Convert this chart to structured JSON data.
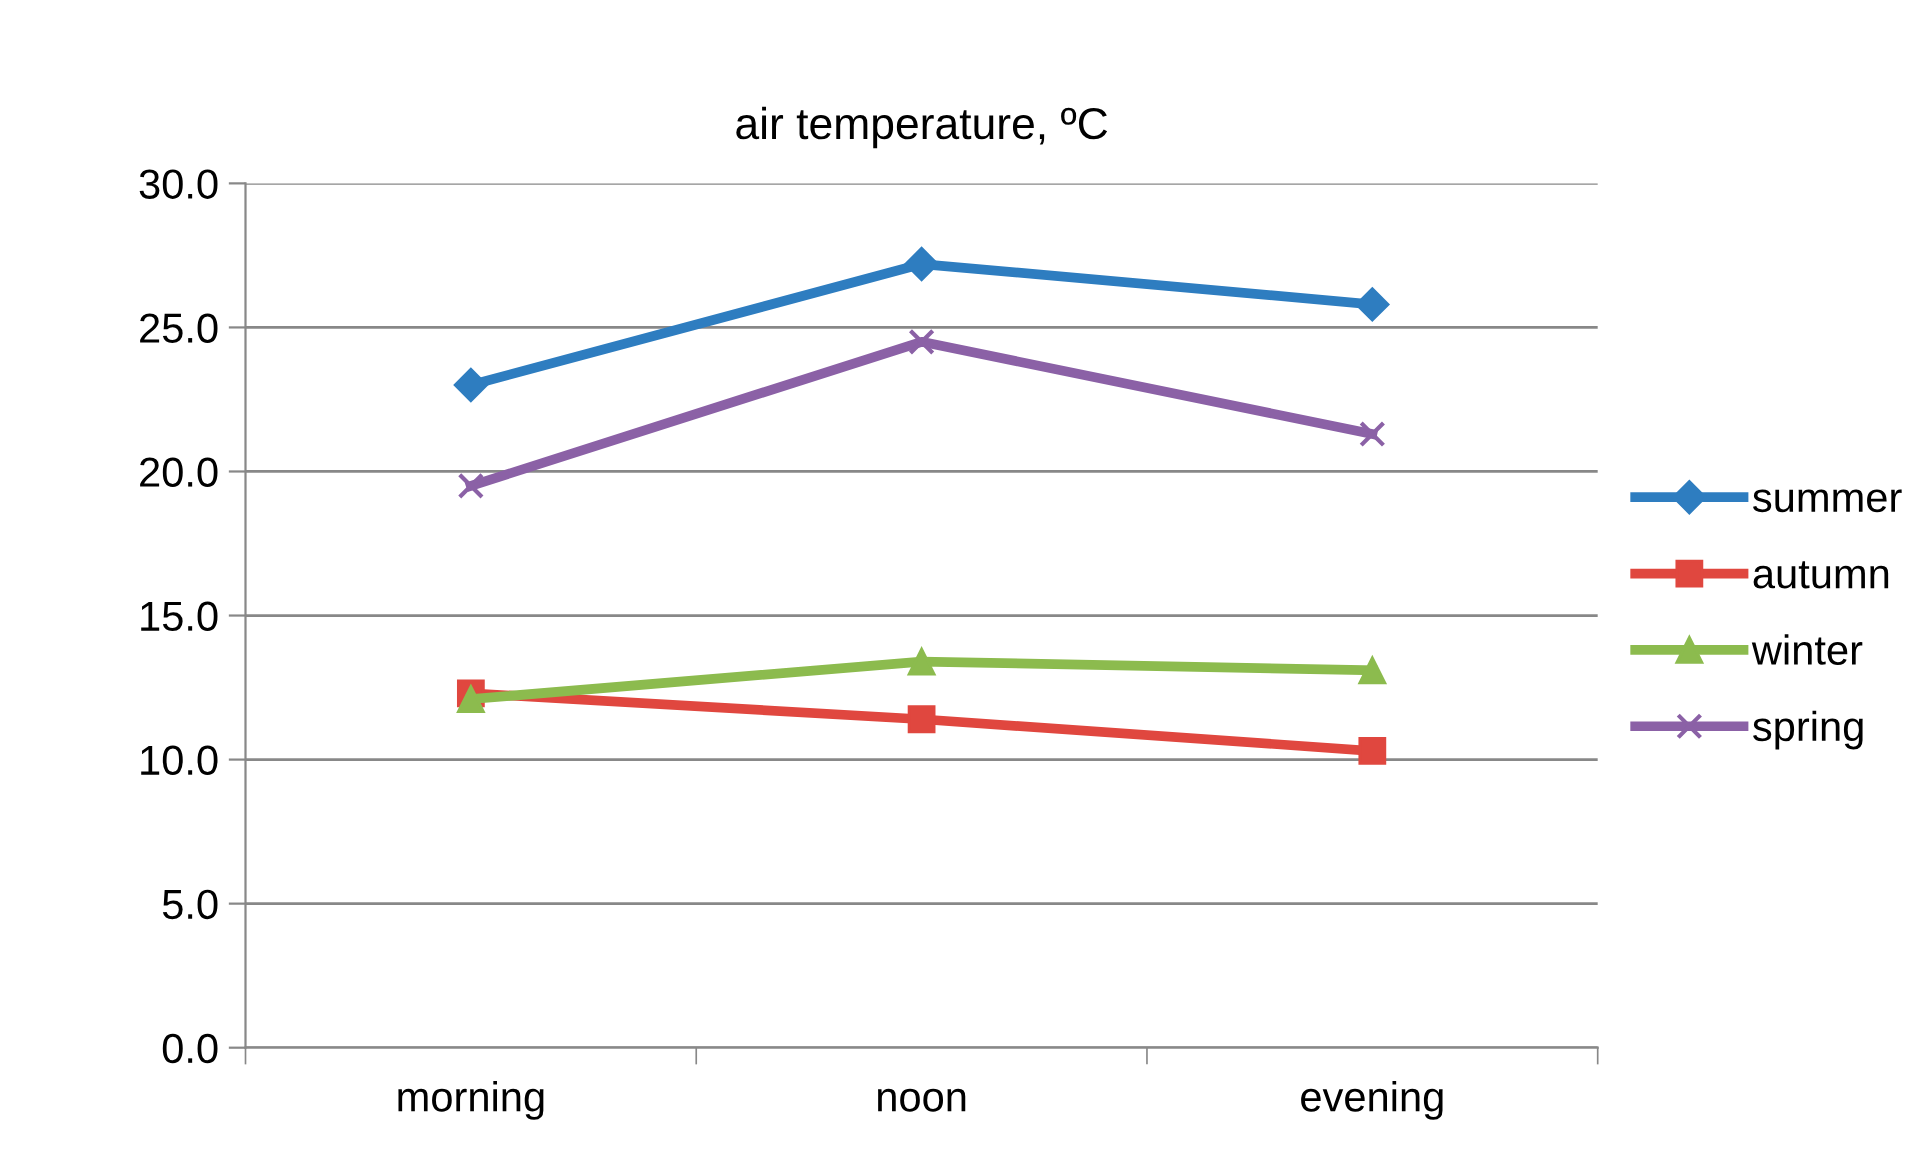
{
  "chart_data": {
    "type": "line",
    "title": "air temperature, ºC",
    "categories": [
      "morning",
      "noon",
      "evening"
    ],
    "series": [
      {
        "name": "summer",
        "color": "#2e7dc0",
        "marker": "diamond",
        "values": [
          23.0,
          27.2,
          25.8
        ]
      },
      {
        "name": "autumn",
        "color": "#e0473f",
        "marker": "square",
        "values": [
          12.3,
          11.4,
          10.3
        ]
      },
      {
        "name": "winter",
        "color": "#8cbb4e",
        "marker": "triangle",
        "values": [
          12.1,
          13.4,
          13.1
        ]
      },
      {
        "name": "spring",
        "color": "#8b61a6",
        "marker": "cross",
        "values": [
          19.5,
          24.5,
          21.3
        ]
      }
    ],
    "ylim": [
      0,
      30
    ],
    "yticks": [
      {
        "value": 0,
        "label": "0.0"
      },
      {
        "value": 5,
        "label": "5.0"
      },
      {
        "value": 10,
        "label": "10.0"
      },
      {
        "value": 15,
        "label": "15.0"
      },
      {
        "value": 20,
        "label": "20.0"
      },
      {
        "value": 25,
        "label": "25.0"
      },
      {
        "value": 30,
        "label": "30.0"
      }
    ],
    "grid": "y",
    "legend": "right",
    "line_style": "solid"
  }
}
